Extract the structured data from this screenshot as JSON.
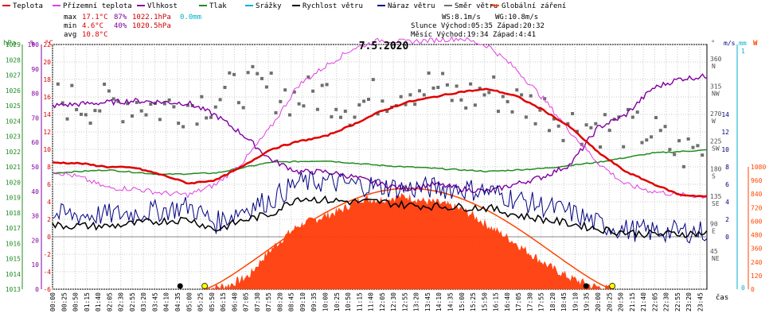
{
  "chart_data": {
    "type": "line",
    "title": "7.5.2020",
    "legend": [
      {
        "label": "Teplota",
        "color": "#e00000"
      },
      {
        "label": "Přízemní teplota",
        "color": "#e040e0"
      },
      {
        "label": "Vlhkost",
        "color": "#8000a0"
      },
      {
        "label": "Tlak",
        "color": "#228b22"
      },
      {
        "label": "Srážky",
        "color": "#00b0d0"
      },
      {
        "label": "Rychlost větru",
        "color": "#000000"
      },
      {
        "label": "Náraz větru",
        "color": "#000080"
      },
      {
        "label": "Směr větru",
        "color": "#707070"
      },
      {
        "label": "Globální záření",
        "color": "#ff4500"
      }
    ],
    "stats": {
      "rows": [
        {
          "label": "max",
          "temp": "17.1°C",
          "hum": "87%",
          "press": "1022.1hPa",
          "rain": "0.0mm"
        },
        {
          "label": "min",
          "temp": "4.6°C",
          "hum": "40%",
          "press": "1020.5hPa",
          "rain": ""
        },
        {
          "label": "avg",
          "temp": "10.8°C",
          "hum": "",
          "press": "",
          "rain": ""
        }
      ],
      "ws": "WS:8.1m/s",
      "wg": "WG:10.8m/s",
      "sun": "Slunce Východ:05:35  Západ:20:32",
      "moon": "Měsíc Východ:19:34  Západ:4:41"
    },
    "axes": {
      "pressure": {
        "unit": "hPa",
        "ticks": [
          "1029",
          "1028",
          "1027",
          "1026",
          "1025",
          "1024",
          "1023",
          "1022",
          "1021",
          "1020",
          "1019",
          "1018",
          "1017",
          "1016",
          "1015",
          "1014",
          "1013"
        ]
      },
      "humidity": {
        "unit": "%",
        "ticks": [
          "100",
          "90",
          "80",
          "70",
          "60",
          "50",
          "40",
          "30",
          "20",
          "10",
          "0"
        ]
      },
      "temperature": {
        "unit": "°C",
        "ticks": [
          "22",
          "20",
          "18",
          "16",
          "14",
          "12",
          "10",
          "8",
          "6",
          "4",
          "2",
          "0",
          "-2",
          "-4",
          "-6"
        ]
      },
      "direction": {
        "unit": "°",
        "ticks": [
          {
            "deg": "360",
            "dir": "N"
          },
          {
            "deg": "315",
            "dir": "NW"
          },
          {
            "deg": "270",
            "dir": "W"
          },
          {
            "deg": "225",
            "dir": "SW"
          },
          {
            "deg": "180",
            "dir": "S"
          },
          {
            "deg": "135",
            "dir": "SE"
          },
          {
            "deg": "90",
            "dir": "E"
          },
          {
            "deg": "45",
            "dir": "NE"
          }
        ]
      },
      "wind": {
        "unit": "m/s",
        "ticks": [
          "14",
          "12",
          "10",
          "8",
          "6",
          "4",
          "2",
          "0"
        ]
      },
      "rain": {
        "unit": "mm",
        "ticks": [
          "1",
          "0"
        ]
      },
      "radiation": {
        "unit": "W",
        "ticks": [
          "1080",
          "960",
          "840",
          "720",
          "600",
          "480",
          "360",
          "240",
          "120",
          "0"
        ]
      },
      "time": {
        "unit": "čas",
        "ticks": [
          "00:00",
          "00:25",
          "00:50",
          "01:15",
          "01:40",
          "02:05",
          "02:30",
          "02:55",
          "03:20",
          "03:45",
          "04:10",
          "04:35",
          "05:00",
          "05:25",
          "05:50",
          "06:15",
          "06:40",
          "07:05",
          "07:30",
          "07:55",
          "08:20",
          "08:45",
          "09:10",
          "09:35",
          "10:00",
          "10:25",
          "10:50",
          "11:15",
          "11:40",
          "12:05",
          "12:30",
          "12:55",
          "13:20",
          "13:45",
          "14:10",
          "14:35",
          "15:00",
          "15:25",
          "15:50",
          "16:15",
          "16:40",
          "17:05",
          "17:30",
          "17:55",
          "18:20",
          "18:45",
          "19:10",
          "19:35",
          "20:00",
          "20:25",
          "20:50",
          "21:15",
          "21:40",
          "22:05",
          "22:30",
          "22:55",
          "23:20",
          "23:45"
        ]
      }
    },
    "series_keypoints": {
      "temperature_c": [
        [
          0,
          8.5
        ],
        [
          1,
          8.4
        ],
        [
          2,
          8.0
        ],
        [
          3,
          7.9
        ],
        [
          4,
          7.1
        ],
        [
          5,
          6.1
        ],
        [
          6,
          6.5
        ],
        [
          7,
          8.1
        ],
        [
          8,
          10.0
        ],
        [
          9,
          10.9
        ],
        [
          10,
          11.5
        ],
        [
          11,
          12.8
        ],
        [
          12,
          14.3
        ],
        [
          13,
          15.4
        ],
        [
          14,
          16.0
        ],
        [
          15,
          16.6
        ],
        [
          16,
          16.9
        ],
        [
          17,
          16.1
        ],
        [
          18,
          14.5
        ],
        [
          19,
          12.5
        ],
        [
          20,
          9.7
        ],
        [
          21,
          7.5
        ],
        [
          22,
          6.1
        ],
        [
          23,
          4.8
        ],
        [
          24,
          4.6
        ]
      ],
      "ground_temp_c": [
        [
          0,
          7.5
        ],
        [
          1,
          6.8
        ],
        [
          2,
          5.6
        ],
        [
          3,
          5.5
        ],
        [
          4,
          5.0
        ],
        [
          5,
          4.8
        ],
        [
          6,
          6.0
        ],
        [
          7,
          8.6
        ],
        [
          8,
          12.5
        ],
        [
          9,
          17.3
        ],
        [
          10,
          19.5
        ],
        [
          11,
          21.5
        ],
        [
          12,
          22.5
        ],
        [
          13,
          22.3
        ],
        [
          14,
          22.5
        ],
        [
          15,
          22.7
        ],
        [
          16,
          21.8
        ],
        [
          17,
          19.2
        ],
        [
          18,
          15.8
        ],
        [
          19,
          12.0
        ],
        [
          20,
          8.5
        ],
        [
          21,
          6.0
        ],
        [
          22,
          5.2
        ],
        [
          23,
          4.8
        ],
        [
          24,
          4.6
        ]
      ],
      "humidity_pct": [
        [
          0,
          75
        ],
        [
          3,
          77
        ],
        [
          5,
          76
        ],
        [
          6,
          71
        ],
        [
          7,
          63
        ],
        [
          8,
          53
        ],
        [
          9,
          48
        ],
        [
          10,
          48
        ],
        [
          11,
          46
        ],
        [
          12,
          43
        ],
        [
          13,
          41
        ],
        [
          14,
          43
        ],
        [
          15,
          41
        ],
        [
          16,
          40
        ],
        [
          17,
          43
        ],
        [
          18,
          46
        ],
        [
          19,
          51
        ],
        [
          20,
          66
        ],
        [
          21,
          71
        ],
        [
          22,
          82
        ],
        [
          23,
          86
        ],
        [
          24,
          87
        ]
      ],
      "pressure_hpa": [
        [
          0,
          1020.6
        ],
        [
          2,
          1020.8
        ],
        [
          4,
          1020.5
        ],
        [
          6,
          1020.6
        ],
        [
          8,
          1021.3
        ],
        [
          10,
          1021.4
        ],
        [
          12,
          1021.1
        ],
        [
          14,
          1020.9
        ],
        [
          16,
          1020.7
        ],
        [
          18,
          1020.9
        ],
        [
          20,
          1021.3
        ],
        [
          22,
          1021.9
        ],
        [
          24,
          1022.1
        ]
      ],
      "wind_speed_ms": [
        [
          0,
          1.3
        ],
        [
          2,
          1.2
        ],
        [
          4,
          1.8
        ],
        [
          5,
          2.0
        ],
        [
          6,
          0.8
        ],
        [
          7,
          1.9
        ],
        [
          8,
          2.6
        ],
        [
          9,
          4.5
        ],
        [
          10,
          4.2
        ],
        [
          11,
          4.0
        ],
        [
          12,
          4.0
        ],
        [
          13,
          3.6
        ],
        [
          14,
          3.5
        ],
        [
          15,
          3.4
        ],
        [
          16,
          3.3
        ],
        [
          17,
          2.5
        ],
        [
          18,
          2.0
        ],
        [
          19,
          1.5
        ],
        [
          20,
          0.9
        ],
        [
          21,
          0.5
        ],
        [
          22,
          0.3
        ],
        [
          24,
          0.4
        ]
      ],
      "wind_gust_ms": [
        [
          0,
          2.5
        ],
        [
          2,
          2.5
        ],
        [
          4,
          3.0
        ],
        [
          5,
          3.5
        ],
        [
          6,
          1.6
        ],
        [
          7,
          3.2
        ],
        [
          8,
          4.2
        ],
        [
          9,
          6.2
        ],
        [
          10,
          6.3
        ],
        [
          11,
          6.0
        ],
        [
          12,
          5.8
        ],
        [
          13,
          5.5
        ],
        [
          14,
          5.6
        ],
        [
          15,
          5.5
        ],
        [
          16,
          5.2
        ],
        [
          17,
          4.3
        ],
        [
          18,
          3.5
        ],
        [
          19,
          2.8
        ],
        [
          20,
          1.5
        ],
        [
          21,
          0.8
        ],
        [
          22,
          0.6
        ],
        [
          24,
          0.6
        ]
      ],
      "radiation_wm2": [
        [
          0,
          0
        ],
        [
          5.6,
          0
        ],
        [
          6.5,
          40
        ],
        [
          7.2,
          120
        ],
        [
          7.8,
          300
        ],
        [
          8.4,
          440
        ],
        [
          9,
          560
        ],
        [
          9.8,
          630
        ],
        [
          10.6,
          700
        ],
        [
          11.3,
          800
        ],
        [
          12,
          790
        ],
        [
          12.5,
          810
        ],
        [
          13,
          820
        ],
        [
          13.6,
          780
        ],
        [
          14.2,
          760
        ],
        [
          14.8,
          720
        ],
        [
          15.3,
          670
        ],
        [
          16,
          560
        ],
        [
          16.8,
          440
        ],
        [
          17.5,
          320
        ],
        [
          18.3,
          190
        ],
        [
          19,
          100
        ],
        [
          19.8,
          30
        ],
        [
          20.5,
          0
        ],
        [
          24,
          0
        ]
      ],
      "wind_dir_deg": [
        [
          0,
          300
        ],
        [
          1,
          292
        ],
        [
          2,
          290
        ],
        [
          3,
          296
        ],
        [
          4,
          285
        ],
        [
          5,
          290
        ],
        [
          6,
          300
        ],
        [
          7,
          320
        ],
        [
          8,
          313
        ],
        [
          9,
          300
        ],
        [
          10,
          310
        ],
        [
          11,
          285
        ],
        [
          12,
          305
        ],
        [
          13,
          318
        ],
        [
          14,
          320
        ],
        [
          15,
          300
        ],
        [
          16,
          313
        ],
        [
          17,
          295
        ],
        [
          18,
          283
        ],
        [
          19,
          260
        ],
        [
          20,
          255
        ],
        [
          21,
          250
        ],
        [
          22,
          245
        ],
        [
          23,
          210
        ],
        [
          24,
          220
        ]
      ]
    },
    "sun_markers": [
      {
        "x": 5.58,
        "kind": "sunrise"
      },
      {
        "x": 20.53,
        "kind": "sunset"
      }
    ],
    "moon_markers": [
      {
        "x": 4.68,
        "kind": "moonset"
      },
      {
        "x": 19.57,
        "kind": "moonrise"
      }
    ]
  }
}
